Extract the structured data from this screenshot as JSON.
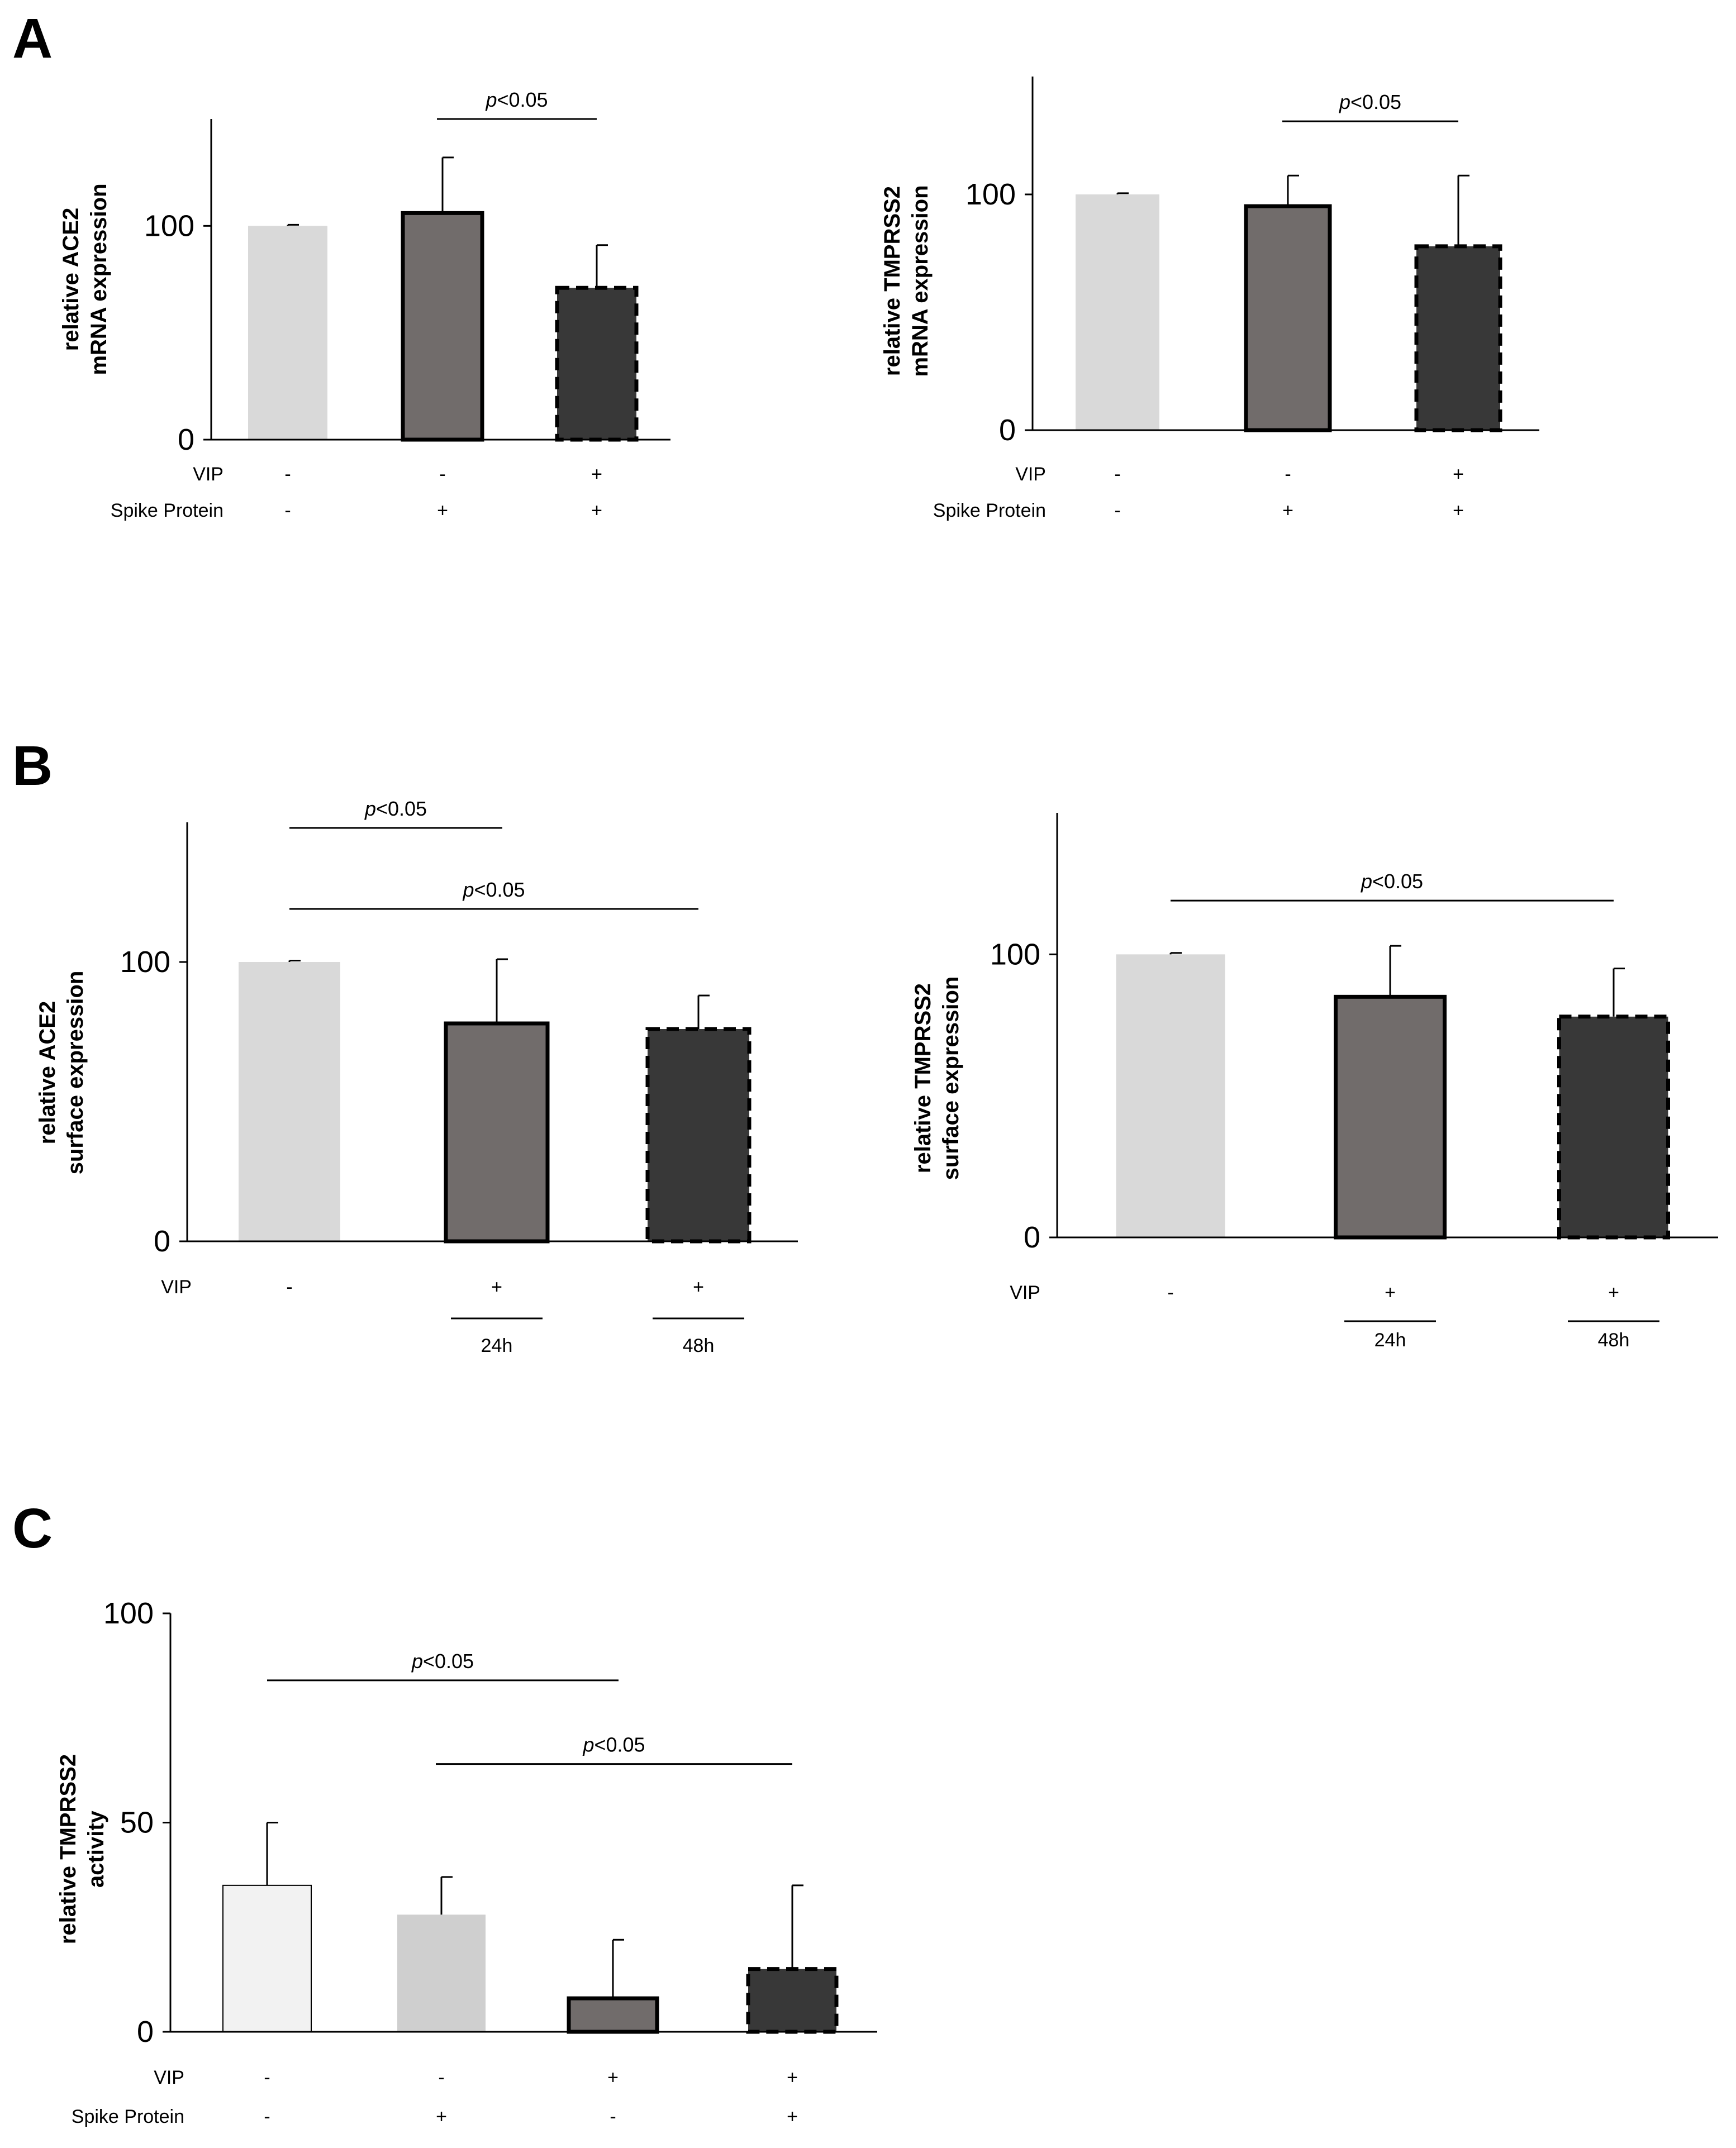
{
  "panels": [
    "A",
    "B",
    "C"
  ],
  "colors": {
    "light": "#d9d9d9",
    "medium": "#716c6b",
    "dark": "#383838",
    "white": "#f2f2f2",
    "pale": "#cfcfcf",
    "axis": "#000000"
  },
  "chart_data": [
    {
      "id": "A1",
      "panel": "A",
      "type": "bar",
      "title": "",
      "ylabel": [
        "relative ACE2",
        "mRNA expression"
      ],
      "ylim": [
        0,
        150
      ],
      "yticks": [
        "0",
        "100"
      ],
      "ytick_values": [
        0,
        100
      ],
      "values": [
        100,
        106,
        71
      ],
      "errors": [
        0.5,
        26,
        20
      ],
      "colors": [
        "light",
        "medium",
        "dark"
      ],
      "borders": [
        "none",
        "solid",
        "dashed"
      ],
      "rows": [
        {
          "label": "VIP",
          "values": [
            "-",
            "-",
            "+"
          ]
        },
        {
          "label": "Spike Protein",
          "values": [
            "-",
            "+",
            "+"
          ]
        }
      ],
      "significance": [
        {
          "from": 1,
          "to": 2,
          "p": "p",
          "rest": "<0.05",
          "level": 150
        }
      ]
    },
    {
      "id": "A2",
      "panel": "A",
      "type": "bar",
      "title": "",
      "ylabel": [
        "relative TMPRSS2",
        "mRNA expression"
      ],
      "ylim": [
        0,
        150
      ],
      "yticks": [
        "0",
        "100"
      ],
      "ytick_values": [
        0,
        100
      ],
      "values": [
        100,
        95,
        78
      ],
      "errors": [
        0.5,
        13,
        30
      ],
      "colors": [
        "light",
        "medium",
        "dark"
      ],
      "borders": [
        "none",
        "solid",
        "dashed"
      ],
      "rows": [
        {
          "label": "VIP",
          "values": [
            "-",
            "-",
            "+"
          ]
        },
        {
          "label": "Spike Protein",
          "values": [
            "-",
            "+",
            "+"
          ]
        }
      ],
      "significance": [
        {
          "from": 1,
          "to": 2,
          "p": "p",
          "rest": "<0.05",
          "level": 131
        }
      ]
    },
    {
      "id": "B1",
      "panel": "B",
      "type": "bar",
      "title": "",
      "ylabel": [
        "relative ACE2",
        "surface expression"
      ],
      "ylim": [
        0,
        150
      ],
      "yticks": [
        "0",
        "100"
      ],
      "ytick_values": [
        0,
        100
      ],
      "values": [
        100,
        78,
        76
      ],
      "errors": [
        0.5,
        23,
        12
      ],
      "colors": [
        "light",
        "medium",
        "dark"
      ],
      "borders": [
        "none",
        "solid",
        "dashed"
      ],
      "rows": [
        {
          "label": "VIP",
          "values": [
            "-",
            "+",
            "+"
          ]
        }
      ],
      "time_labels": [
        "",
        "24h",
        "48h"
      ],
      "significance": [
        {
          "from": 0,
          "to": 1,
          "p": "p",
          "rest": "<0.05",
          "level": 148
        },
        {
          "from": 0,
          "to": 2,
          "p": "p",
          "rest": "<0.05",
          "level": 119
        }
      ]
    },
    {
      "id": "B2",
      "panel": "B",
      "type": "bar",
      "title": "",
      "ylabel": [
        "relative TMPRSS2",
        "surface expression"
      ],
      "ylim": [
        0,
        150
      ],
      "yticks": [
        "0",
        "100"
      ],
      "ytick_values": [
        0,
        100
      ],
      "values": [
        100,
        85,
        78
      ],
      "errors": [
        0.5,
        18,
        17
      ],
      "colors": [
        "light",
        "medium",
        "dark"
      ],
      "borders": [
        "none",
        "solid",
        "dashed"
      ],
      "rows": [
        {
          "label": "VIP",
          "values": [
            "-",
            "+",
            "+"
          ]
        }
      ],
      "time_labels": [
        "",
        "24h",
        "48h"
      ],
      "significance": [
        {
          "from": 0,
          "to": 2,
          "p": "p",
          "rest": "<0.05",
          "level": 119
        }
      ]
    },
    {
      "id": "C",
      "panel": "C",
      "type": "bar",
      "title": "",
      "ylabel": [
        "relative TMPRSS2",
        "activity"
      ],
      "ylim": [
        0,
        100
      ],
      "yticks": [
        "0",
        "50",
        "100"
      ],
      "ytick_values": [
        0,
        50,
        100
      ],
      "values": [
        35,
        28,
        8,
        15
      ],
      "errors": [
        15,
        9,
        14,
        20
      ],
      "colors": [
        "white",
        "pale",
        "medium",
        "dark"
      ],
      "borders": [
        "thin",
        "none",
        "solid",
        "dashed"
      ],
      "rows": [
        {
          "label": "VIP",
          "values": [
            "-",
            "-",
            "+",
            "+"
          ]
        },
        {
          "label": "Spike Protein",
          "values": [
            "-",
            "+",
            "-",
            "+"
          ]
        }
      ],
      "significance": [
        {
          "from": 0,
          "to": 2,
          "p": "p",
          "rest": "<0.05",
          "level": 84
        },
        {
          "from": 1,
          "to": 3,
          "p": "p",
          "rest": "<0.05",
          "level": 64
        }
      ]
    }
  ]
}
